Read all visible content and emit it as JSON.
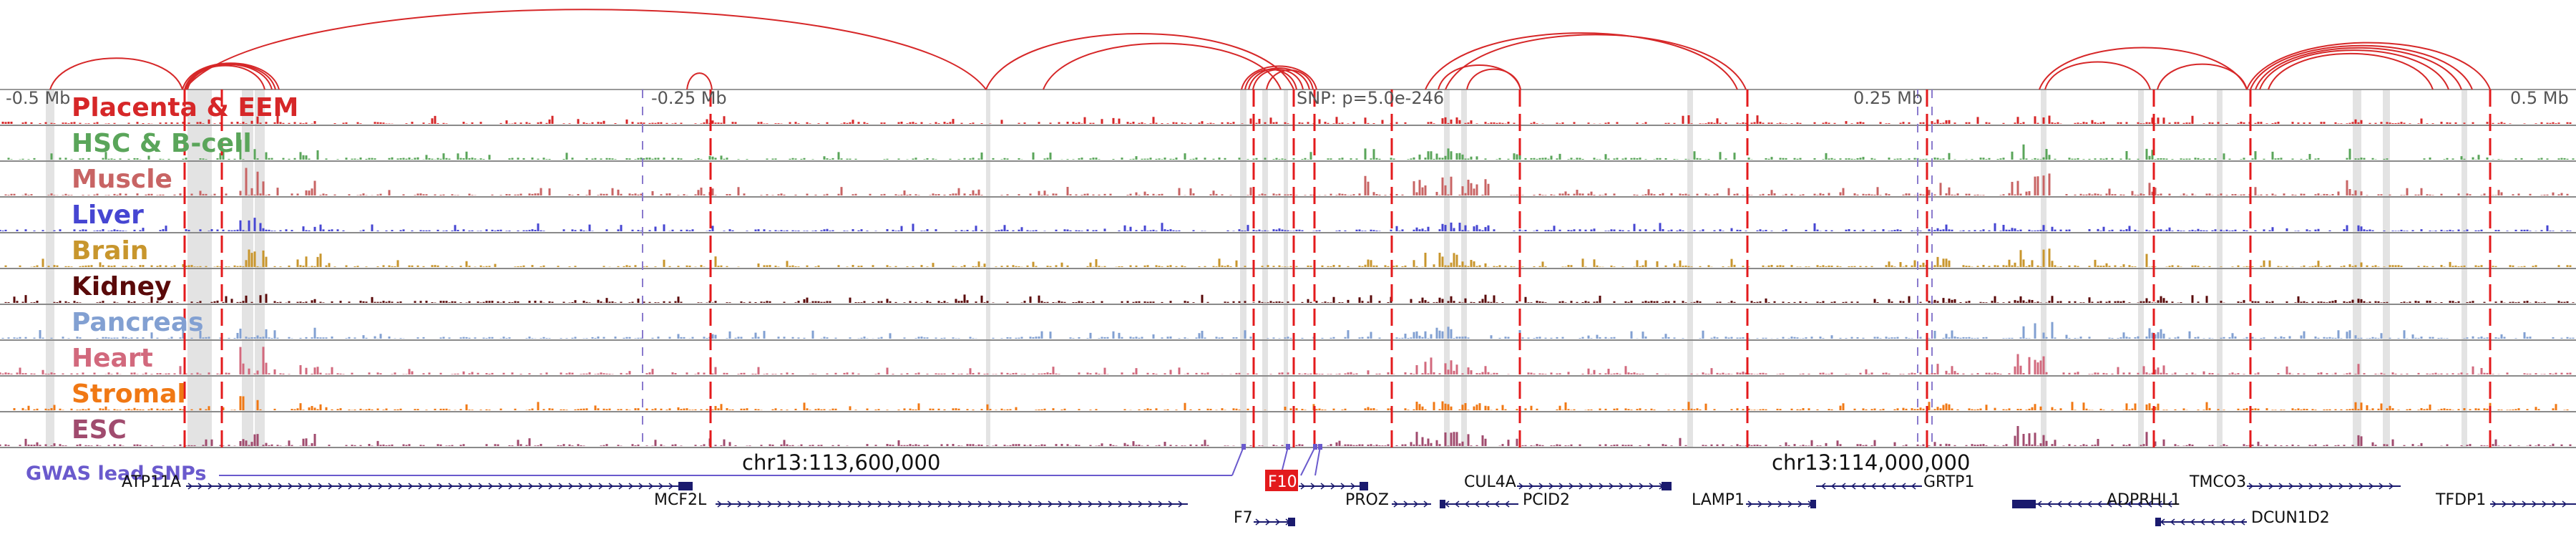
{
  "scale_labels": [
    "-0.5 Mb",
    "-0.25 Mb",
    "0.25 Mb",
    "0.5 Mb"
  ],
  "snp_label": "SNP: p=5.0e-246",
  "tracks": [
    {
      "label": "Placenta & EEM",
      "color": "#d62728"
    },
    {
      "label": "HSC & B-cell",
      "color": "#5aa55a"
    },
    {
      "label": "Muscle",
      "color": "#c86464"
    },
    {
      "label": "Liver",
      "color": "#4646d2"
    },
    {
      "label": "Brain",
      "color": "#c8962d"
    },
    {
      "label": "Kidney",
      "color": "#5a0a0a"
    },
    {
      "label": "Pancreas",
      "color": "#82a0d2"
    },
    {
      "label": "Heart",
      "color": "#d2697d"
    },
    {
      "label": "Stromal",
      "color": "#f07814"
    },
    {
      "label": "ESC",
      "color": "#a04b6e"
    }
  ],
  "coordinates": [
    "chr13:113,600,000",
    "chr13:114,000,000"
  ],
  "gwas_label": "GWAS lead SNPs",
  "gwas_color": "#6a5acd",
  "genes": [
    {
      "name": "ATP11A",
      "row": 0
    },
    {
      "name": "MCF2L",
      "row": 1
    },
    {
      "name": "F7",
      "row": 2
    },
    {
      "name": "F10",
      "row": 0,
      "highlight": true
    },
    {
      "name": "PROZ",
      "row": 1
    },
    {
      "name": "CUL4A",
      "row": 0
    },
    {
      "name": "PCID2",
      "row": 1
    },
    {
      "name": "LAMP1",
      "row": 1
    },
    {
      "name": "GRTP1",
      "row": 0
    },
    {
      "name": "TMCO3",
      "row": 0
    },
    {
      "name": "ADPRHL1",
      "row": 1
    },
    {
      "name": "DCUN1D2",
      "row": 2
    },
    {
      "name": "TFDP1",
      "row": 1
    }
  ],
  "colors": {
    "loop": "#d62728",
    "gene": "#1a1a6e",
    "highlight": "#e31a1c",
    "grey_band": "#e3e3e3",
    "red_dash": "#e31a1c"
  }
}
